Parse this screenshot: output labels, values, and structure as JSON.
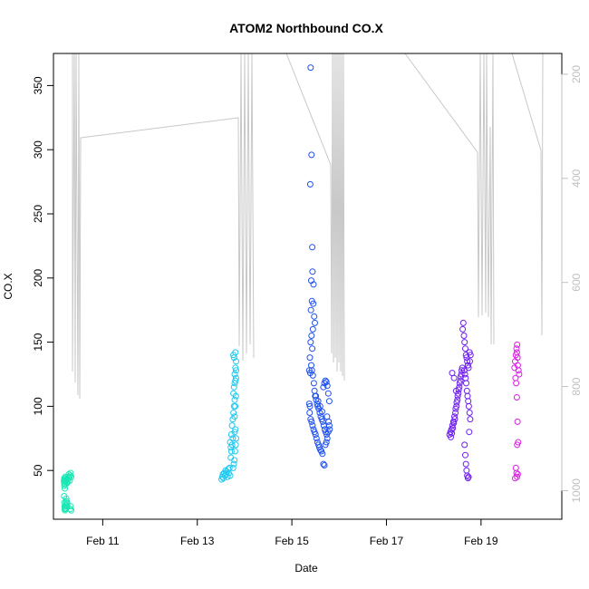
{
  "chart_data": {
    "type": "scatter",
    "title": "ATOM2 Northbound CO.X",
    "xlabel": "Date",
    "ylabel": "CO.X",
    "xlim": [
      "2014-02-09T23:00",
      "2014-02-20T17:00"
    ],
    "ylim": [
      12,
      375
    ],
    "x_ticks": [
      {
        "date": "2014-02-11",
        "label": "Feb 11"
      },
      {
        "date": "2014-02-13",
        "label": "Feb 13"
      },
      {
        "date": "2014-02-15",
        "label": "Feb 15"
      },
      {
        "date": "2014-02-17",
        "label": "Feb 17"
      },
      {
        "date": "2014-02-19",
        "label": "Feb 19"
      }
    ],
    "y_ticks": [
      50,
      100,
      150,
      200,
      250,
      300,
      350
    ],
    "y2_lim": [
      1055,
      160
    ],
    "y2_ticks": [
      200,
      400,
      600,
      800,
      1000
    ],
    "colors": {
      "c1": "#19e6b4",
      "c2": "#1ec8f0",
      "c3": "#1e50f0",
      "c4": "#6e1ef0",
      "c5": "#dc1ee6",
      "profile": "#c8c8c8",
      "axis": "#000000",
      "right_axis": "#c0c0c0"
    },
    "series": [
      {
        "color": "#19e6b4",
        "points": [
          [
            "2014-02-10T04:20",
            42
          ],
          [
            "2014-02-10T04:25",
            40
          ],
          [
            "2014-02-10T04:30",
            44
          ],
          [
            "2014-02-10T04:35",
            38
          ],
          [
            "2014-02-10T04:40",
            43
          ],
          [
            "2014-02-10T04:45",
            36
          ],
          [
            "2014-02-10T04:50",
            41
          ],
          [
            "2014-02-10T04:55",
            45
          ],
          [
            "2014-02-10T05:00",
            39
          ],
          [
            "2014-02-10T05:05",
            42
          ],
          [
            "2014-02-10T04:25",
            30
          ],
          [
            "2014-02-10T04:35",
            25
          ],
          [
            "2014-02-10T04:40",
            22
          ],
          [
            "2014-02-10T04:45",
            20
          ],
          [
            "2014-02-10T04:50",
            19
          ],
          [
            "2014-02-10T05:00",
            21
          ],
          [
            "2014-02-10T05:10",
            23
          ],
          [
            "2014-02-10T05:15",
            20
          ],
          [
            "2014-02-10T05:20",
            25
          ],
          [
            "2014-02-10T05:30",
            28
          ],
          [
            "2014-02-10T05:40",
            26
          ],
          [
            "2014-02-10T05:50",
            22
          ],
          [
            "2014-02-10T06:00",
            24
          ],
          [
            "2014-02-10T05:15",
            42
          ],
          [
            "2014-02-10T05:30",
            44
          ],
          [
            "2014-02-10T05:45",
            40
          ],
          [
            "2014-02-10T06:00",
            43
          ],
          [
            "2014-02-10T06:15",
            41
          ],
          [
            "2014-02-10T06:30",
            45
          ],
          [
            "2014-02-10T06:45",
            47
          ],
          [
            "2014-02-10T07:00",
            44
          ],
          [
            "2014-02-10T07:15",
            42
          ],
          [
            "2014-02-10T07:30",
            46
          ],
          [
            "2014-02-10T07:45",
            48
          ],
          [
            "2014-02-10T08:00",
            45
          ],
          [
            "2014-02-10T07:30",
            20
          ],
          [
            "2014-02-10T07:45",
            22
          ],
          [
            "2014-02-10T08:00",
            19
          ]
        ]
      },
      {
        "color": "#1ec8f0",
        "points": [
          [
            "2014-02-13T12:20",
            43
          ],
          [
            "2014-02-13T12:40",
            45
          ],
          [
            "2014-02-13T13:00",
            47
          ],
          [
            "2014-02-13T13:20",
            44
          ],
          [
            "2014-02-13T13:40",
            48
          ],
          [
            "2014-02-13T14:00",
            46
          ],
          [
            "2014-02-13T14:20",
            50
          ],
          [
            "2014-02-13T14:40",
            47
          ],
          [
            "2014-02-13T15:00",
            49
          ],
          [
            "2014-02-13T15:20",
            45
          ],
          [
            "2014-02-13T15:40",
            51
          ],
          [
            "2014-02-13T16:00",
            48
          ],
          [
            "2014-02-13T16:20",
            52
          ],
          [
            "2014-02-13T16:40",
            46
          ],
          [
            "2014-02-13T17:00",
            60
          ],
          [
            "2014-02-13T17:20",
            65
          ],
          [
            "2014-02-13T17:40",
            70
          ],
          [
            "2014-02-13T18:00",
            75
          ],
          [
            "2014-02-13T16:40",
            72
          ],
          [
            "2014-02-13T17:00",
            68
          ],
          [
            "2014-02-13T17:20",
            78
          ],
          [
            "2014-02-13T17:40",
            85
          ],
          [
            "2014-02-13T18:00",
            90
          ],
          [
            "2014-02-13T18:20",
            95
          ],
          [
            "2014-02-13T18:40",
            100
          ],
          [
            "2014-02-13T19:00",
            105
          ],
          [
            "2014-02-13T18:20",
            110
          ],
          [
            "2014-02-13T18:40",
            115
          ],
          [
            "2014-02-13T19:00",
            118
          ],
          [
            "2014-02-13T19:20",
            120
          ],
          [
            "2014-02-13T19:40",
            122
          ],
          [
            "2014-02-13T19:00",
            125
          ],
          [
            "2014-02-13T19:20",
            130
          ],
          [
            "2014-02-13T19:40",
            135
          ],
          [
            "2014-02-13T18:20",
            140
          ],
          [
            "2014-02-13T18:40",
            138
          ],
          [
            "2014-02-13T19:20",
            142
          ],
          [
            "2014-02-13T19:40",
            128
          ],
          [
            "2014-02-13T19:00",
            80
          ],
          [
            "2014-02-13T19:20",
            82
          ],
          [
            "2014-02-13T19:40",
            75
          ],
          [
            "2014-02-13T19:30",
            70
          ],
          [
            "2014-02-13T19:10",
            65
          ],
          [
            "2014-02-13T18:50",
            58
          ],
          [
            "2014-02-13T18:30",
            55
          ],
          [
            "2014-02-13T18:10",
            52
          ],
          [
            "2014-02-13T19:35",
            108
          ],
          [
            "2014-02-13T19:15",
            100
          ],
          [
            "2014-02-13T18:55",
            92
          ]
        ]
      },
      {
        "color": "#1e50f0",
        "points": [
          [
            "2014-02-15T09:30",
            364
          ],
          [
            "2014-02-15T10:00",
            296
          ],
          [
            "2014-02-15T09:20",
            273
          ],
          [
            "2014-02-15T10:20",
            224
          ],
          [
            "2014-02-15T10:30",
            205
          ],
          [
            "2014-02-15T09:50",
            198
          ],
          [
            "2014-02-15T11:00",
            195
          ],
          [
            "2014-02-15T10:10",
            182
          ],
          [
            "2014-02-15T10:50",
            180
          ],
          [
            "2014-02-15T09:40",
            175
          ],
          [
            "2014-02-15T11:20",
            170
          ],
          [
            "2014-02-15T11:40",
            165
          ],
          [
            "2014-02-15T10:40",
            160
          ],
          [
            "2014-02-15T10:00",
            155
          ],
          [
            "2014-02-15T09:30",
            150
          ],
          [
            "2014-02-15T10:20",
            145
          ],
          [
            "2014-02-15T09:10",
            138
          ],
          [
            "2014-02-15T09:50",
            132
          ],
          [
            "2014-02-15T08:50",
            128
          ],
          [
            "2014-02-15T09:20",
            126
          ],
          [
            "2014-02-15T10:10",
            128
          ],
          [
            "2014-02-15T10:40",
            124
          ],
          [
            "2014-02-15T11:10",
            118
          ],
          [
            "2014-02-15T11:30",
            112
          ],
          [
            "2014-02-15T11:50",
            108
          ],
          [
            "2014-02-15T12:20",
            105
          ],
          [
            "2014-02-15T12:50",
            102
          ],
          [
            "2014-02-15T13:10",
            100
          ],
          [
            "2014-02-15T13:40",
            98
          ],
          [
            "2014-02-15T14:10",
            95
          ],
          [
            "2014-02-15T14:40",
            92
          ],
          [
            "2014-02-15T15:10",
            90
          ],
          [
            "2014-02-15T15:40",
            88
          ],
          [
            "2014-02-15T16:10",
            85
          ],
          [
            "2014-02-15T16:40",
            82
          ],
          [
            "2014-02-15T17:10",
            80
          ],
          [
            "2014-02-15T17:40",
            78
          ],
          [
            "2014-02-15T09:00",
            95
          ],
          [
            "2014-02-15T09:30",
            90
          ],
          [
            "2014-02-15T10:00",
            88
          ],
          [
            "2014-02-15T10:30",
            85
          ],
          [
            "2014-02-15T11:00",
            82
          ],
          [
            "2014-02-15T11:30",
            80
          ],
          [
            "2014-02-15T12:00",
            78
          ],
          [
            "2014-02-15T12:30",
            75
          ],
          [
            "2014-02-15T13:00",
            72
          ],
          [
            "2014-02-15T13:30",
            70
          ],
          [
            "2014-02-15T14:00",
            68
          ],
          [
            "2014-02-15T14:30",
            66
          ],
          [
            "2014-02-15T15:00",
            65
          ],
          [
            "2014-02-15T15:30",
            63
          ],
          [
            "2014-02-15T16:00",
            55
          ],
          [
            "2014-02-15T16:30",
            54
          ],
          [
            "2014-02-15T17:00",
            70
          ],
          [
            "2014-02-15T17:30",
            72
          ],
          [
            "2014-02-15T18:00",
            75
          ],
          [
            "2014-02-15T18:30",
            80
          ],
          [
            "2014-02-15T19:00",
            85
          ],
          [
            "2014-02-15T16:00",
            115
          ],
          [
            "2014-02-15T16:30",
            118
          ],
          [
            "2014-02-15T17:00",
            120
          ],
          [
            "2014-02-15T17:30",
            119
          ],
          [
            "2014-02-15T18:00",
            116
          ],
          [
            "2014-02-15T18:30",
            110
          ],
          [
            "2014-02-15T19:00",
            104
          ],
          [
            "2014-02-15T08:50",
            102
          ],
          [
            "2014-02-15T09:10",
            100
          ],
          [
            "2014-02-15T12:10",
            108
          ],
          [
            "2014-02-15T13:20",
            104
          ],
          [
            "2014-02-15T14:20",
            100
          ],
          [
            "2014-02-15T15:20",
            96
          ],
          [
            "2014-02-15T17:50",
            92
          ],
          [
            "2014-02-15T18:40",
            88
          ],
          [
            "2014-02-15T19:10",
            82
          ]
        ]
      },
      {
        "color": "#6e1ef0",
        "points": [
          [
            "2014-02-18T08:00",
            78
          ],
          [
            "2014-02-18T08:30",
            80
          ],
          [
            "2014-02-18T09:00",
            82
          ],
          [
            "2014-02-18T09:30",
            85
          ],
          [
            "2014-02-18T10:00",
            88
          ],
          [
            "2014-02-18T10:30",
            92
          ],
          [
            "2014-02-18T11:00",
            95
          ],
          [
            "2014-02-18T11:30",
            100
          ],
          [
            "2014-02-18T12:00",
            105
          ],
          [
            "2014-02-18T12:30",
            110
          ],
          [
            "2014-02-18T13:00",
            115
          ],
          [
            "2014-02-18T13:30",
            120
          ],
          [
            "2014-02-18T14:00",
            125
          ],
          [
            "2014-02-18T14:30",
            130
          ],
          [
            "2014-02-18T08:40",
            76
          ],
          [
            "2014-02-18T09:10",
            79
          ],
          [
            "2014-02-18T09:40",
            83
          ],
          [
            "2014-02-18T10:10",
            87
          ],
          [
            "2014-02-18T10:40",
            90
          ],
          [
            "2014-02-18T11:10",
            98
          ],
          [
            "2014-02-18T11:40",
            103
          ],
          [
            "2014-02-18T12:10",
            108
          ],
          [
            "2014-02-18T12:40",
            113
          ],
          [
            "2014-02-18T13:10",
            118
          ],
          [
            "2014-02-18T13:40",
            123
          ],
          [
            "2014-02-18T14:10",
            128
          ],
          [
            "2014-02-18T14:40",
            160
          ],
          [
            "2014-02-18T15:00",
            165
          ],
          [
            "2014-02-18T15:20",
            155
          ],
          [
            "2014-02-18T15:40",
            150
          ],
          [
            "2014-02-18T16:00",
            145
          ],
          [
            "2014-02-18T16:20",
            140
          ],
          [
            "2014-02-18T16:40",
            138
          ],
          [
            "2014-02-18T17:00",
            135
          ],
          [
            "2014-02-18T17:20",
            132
          ],
          [
            "2014-02-18T17:40",
            130
          ],
          [
            "2014-02-18T15:30",
            128
          ],
          [
            "2014-02-18T15:50",
            125
          ],
          [
            "2014-02-18T16:10",
            122
          ],
          [
            "2014-02-18T16:30",
            118
          ],
          [
            "2014-02-18T16:50",
            112
          ],
          [
            "2014-02-18T17:10",
            108
          ],
          [
            "2014-02-18T17:30",
            104
          ],
          [
            "2014-02-18T17:50",
            100
          ],
          [
            "2014-02-18T18:10",
            95
          ],
          [
            "2014-02-18T18:30",
            90
          ],
          [
            "2014-02-18T15:40",
            70
          ],
          [
            "2014-02-18T16:00",
            62
          ],
          [
            "2014-02-18T16:20",
            55
          ],
          [
            "2014-02-18T16:40",
            50
          ],
          [
            "2014-02-18T17:00",
            46
          ],
          [
            "2014-02-18T17:20",
            44
          ],
          [
            "2014-02-18T17:40",
            45
          ],
          [
            "2014-02-18T18:00",
            80
          ],
          [
            "2014-02-18T18:20",
            135
          ],
          [
            "2014-02-18T18:40",
            140
          ],
          [
            "2014-02-18T18:10",
            142
          ],
          [
            "2014-02-18T09:20",
            126
          ],
          [
            "2014-02-18T10:20",
            122
          ],
          [
            "2014-02-18T11:20",
            112
          ]
        ]
      },
      {
        "color": "#dc1ee6",
        "points": [
          [
            "2014-02-19T17:00",
            130
          ],
          [
            "2014-02-19T17:20",
            135
          ],
          [
            "2014-02-19T17:40",
            140
          ],
          [
            "2014-02-19T18:00",
            145
          ],
          [
            "2014-02-19T18:20",
            148
          ],
          [
            "2014-02-19T18:40",
            132
          ],
          [
            "2014-02-19T19:00",
            128
          ],
          [
            "2014-02-19T19:20",
            125
          ],
          [
            "2014-02-19T17:30",
            122
          ],
          [
            "2014-02-19T17:50",
            118
          ],
          [
            "2014-02-19T18:10",
            107
          ],
          [
            "2014-02-19T18:30",
            88
          ],
          [
            "2014-02-19T18:50",
            72
          ],
          [
            "2014-02-19T18:20",
            70
          ],
          [
            "2014-02-19T17:40",
            52
          ],
          [
            "2014-02-19T18:00",
            48
          ],
          [
            "2014-02-19T18:20",
            45
          ],
          [
            "2014-02-19T18:40",
            47
          ],
          [
            "2014-02-19T17:20",
            44
          ],
          [
            "2014-02-19T18:10",
            142
          ],
          [
            "2014-02-19T18:30",
            138
          ]
        ]
      }
    ]
  }
}
